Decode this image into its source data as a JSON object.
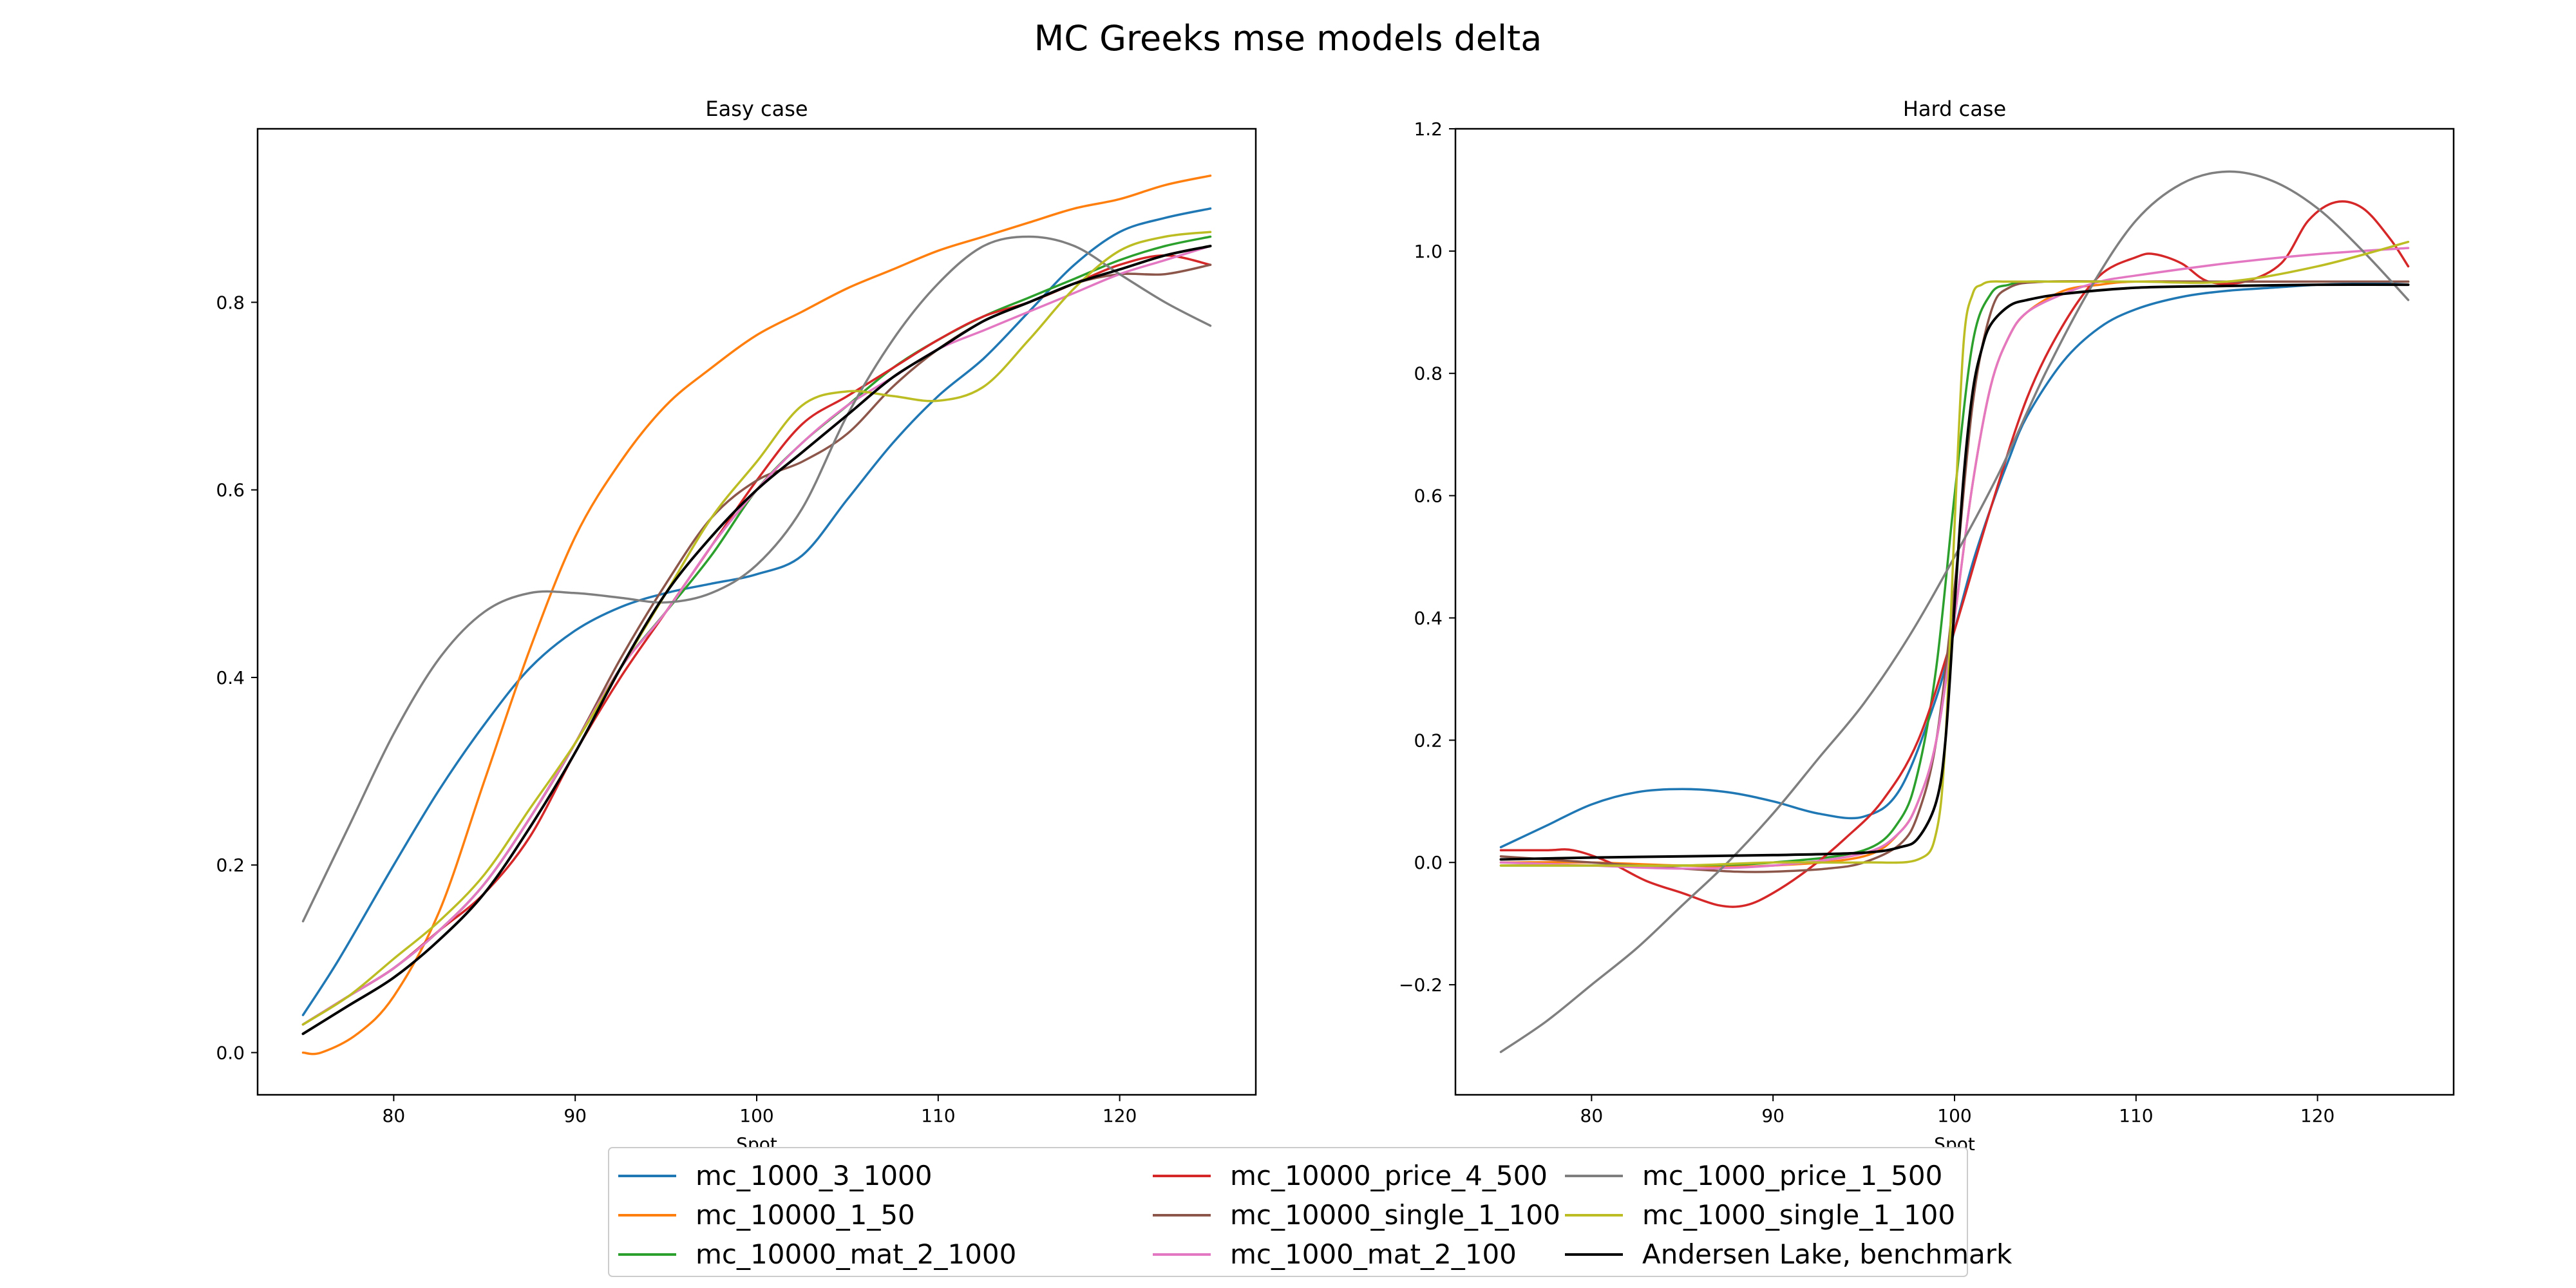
{
  "figure": {
    "suptitle": "MC Greeks mse models delta"
  },
  "legend": {
    "placement": "lower-center",
    "entries": [
      {
        "label": "mc_1000_3_1000",
        "color": "#1f77b4"
      },
      {
        "label": "mc_10000_1_50",
        "color": "#ff7f0e"
      },
      {
        "label": "mc_10000_mat_2_1000",
        "color": "#2ca02c"
      },
      {
        "label": "mc_10000_price_4_500",
        "color": "#d62728"
      },
      {
        "label": "mc_10000_single_1_100",
        "color": "#8c564b"
      },
      {
        "label": "mc_1000_mat_2_100",
        "color": "#e377c2"
      },
      {
        "label": "mc_1000_price_1_500",
        "color": "#7f7f7f"
      },
      {
        "label": "mc_1000_single_1_100",
        "color": "#bcbd22"
      },
      {
        "label": "Andersen Lake, benchmark",
        "color": "#000000"
      }
    ]
  },
  "chart_data": [
    {
      "type": "line",
      "title": "Easy case",
      "xlabel": "Spot",
      "ylabel": "",
      "xlim": [
        72.5,
        127.5
      ],
      "ylim": [
        -0.045,
        0.985
      ],
      "xticks": [
        80,
        90,
        100,
        110,
        120
      ],
      "yticks": [
        0.0,
        0.2,
        0.4,
        0.6,
        0.8
      ],
      "ytick_labels": [
        "0.0",
        "0.2",
        "0.4",
        "0.6",
        "0.8"
      ],
      "grid": false,
      "series": [
        {
          "name": "mc_1000_3_1000",
          "color": "#1f77b4",
          "x": [
            75,
            77,
            80,
            82.5,
            85,
            87.5,
            90,
            92.5,
            95,
            97.5,
            100,
            102.5,
            105,
            107.5,
            110,
            112.5,
            115,
            117.5,
            120,
            122.5,
            125
          ],
          "y": [
            0.04,
            0.1,
            0.2,
            0.28,
            0.35,
            0.41,
            0.45,
            0.475,
            0.49,
            0.5,
            0.51,
            0.53,
            0.59,
            0.65,
            0.7,
            0.74,
            0.79,
            0.84,
            0.875,
            0.89,
            0.9
          ]
        },
        {
          "name": "mc_10000_1_50",
          "color": "#ff7f0e",
          "x": [
            75,
            76,
            78,
            80,
            82.5,
            85,
            87.5,
            90,
            92.5,
            95,
            97.5,
            100,
            102.5,
            105,
            107.5,
            110,
            112.5,
            115,
            117.5,
            120,
            122.5,
            125
          ],
          "y": [
            0.0,
            0.0,
            0.02,
            0.06,
            0.15,
            0.29,
            0.43,
            0.55,
            0.63,
            0.69,
            0.73,
            0.765,
            0.79,
            0.815,
            0.835,
            0.855,
            0.87,
            0.885,
            0.9,
            0.91,
            0.925,
            0.935
          ]
        },
        {
          "name": "mc_10000_mat_2_1000",
          "color": "#2ca02c",
          "x": [
            75,
            77.5,
            80,
            82.5,
            85,
            87.5,
            90,
            92.5,
            95,
            97.5,
            100,
            102.5,
            105,
            107.5,
            110,
            112.5,
            115,
            117.5,
            120,
            122.5,
            125
          ],
          "y": [
            0.03,
            0.06,
            0.09,
            0.13,
            0.18,
            0.25,
            0.33,
            0.41,
            0.47,
            0.53,
            0.6,
            0.65,
            0.69,
            0.73,
            0.76,
            0.785,
            0.805,
            0.825,
            0.845,
            0.86,
            0.87
          ]
        },
        {
          "name": "mc_10000_price_4_500",
          "color": "#d62728",
          "x": [
            75,
            77.5,
            80,
            82.5,
            85,
            87.5,
            90,
            92.5,
            95,
            97.5,
            100,
            102.5,
            105,
            107.5,
            110,
            112.5,
            115,
            117.5,
            120,
            122.5,
            125
          ],
          "y": [
            0.03,
            0.06,
            0.09,
            0.13,
            0.17,
            0.23,
            0.32,
            0.4,
            0.47,
            0.54,
            0.61,
            0.67,
            0.7,
            0.73,
            0.76,
            0.785,
            0.8,
            0.82,
            0.84,
            0.85,
            0.84
          ]
        },
        {
          "name": "mc_10000_single_1_100",
          "color": "#8c564b",
          "x": [
            75,
            77.5,
            80,
            82.5,
            85,
            87.5,
            90,
            92.5,
            95,
            97.5,
            100,
            102.5,
            105,
            107.5,
            110,
            112.5,
            115,
            117.5,
            120,
            122.5,
            125
          ],
          "y": [
            0.03,
            0.06,
            0.09,
            0.13,
            0.18,
            0.25,
            0.33,
            0.42,
            0.5,
            0.57,
            0.61,
            0.63,
            0.66,
            0.71,
            0.75,
            0.78,
            0.8,
            0.82,
            0.83,
            0.83,
            0.84
          ]
        },
        {
          "name": "mc_1000_mat_2_100",
          "color": "#e377c2",
          "x": [
            75,
            77.5,
            80,
            82.5,
            85,
            87.5,
            90,
            92.5,
            95,
            97.5,
            100,
            102.5,
            105,
            107.5,
            110,
            112.5,
            115,
            117.5,
            120,
            122.5,
            125
          ],
          "y": [
            0.03,
            0.06,
            0.09,
            0.13,
            0.18,
            0.25,
            0.33,
            0.41,
            0.47,
            0.54,
            0.6,
            0.65,
            0.69,
            0.72,
            0.75,
            0.77,
            0.79,
            0.81,
            0.83,
            0.845,
            0.86
          ]
        },
        {
          "name": "mc_1000_price_1_500",
          "color": "#7f7f7f",
          "x": [
            75,
            77.5,
            80,
            82.5,
            85,
            87.5,
            90,
            92.5,
            95,
            97.5,
            100,
            102.5,
            105,
            107.5,
            110,
            112.5,
            115,
            117.5,
            120,
            122.5,
            125
          ],
          "y": [
            0.14,
            0.24,
            0.34,
            0.42,
            0.47,
            0.49,
            0.49,
            0.485,
            0.48,
            0.49,
            0.52,
            0.58,
            0.68,
            0.76,
            0.82,
            0.86,
            0.87,
            0.86,
            0.83,
            0.8,
            0.775
          ]
        },
        {
          "name": "mc_1000_single_1_100",
          "color": "#bcbd22",
          "x": [
            75,
            77.5,
            80,
            82.5,
            85,
            87.5,
            90,
            92.5,
            95,
            97.5,
            100,
            102.5,
            105,
            107.5,
            110,
            112.5,
            115,
            117.5,
            120,
            122.5,
            125
          ],
          "y": [
            0.03,
            0.06,
            0.1,
            0.14,
            0.19,
            0.26,
            0.33,
            0.41,
            0.49,
            0.57,
            0.63,
            0.69,
            0.705,
            0.7,
            0.695,
            0.71,
            0.76,
            0.815,
            0.855,
            0.87,
            0.875
          ]
        },
        {
          "name": "Andersen Lake, benchmark",
          "color": "#000000",
          "x": [
            75,
            77.5,
            80,
            82.5,
            85,
            87.5,
            90,
            92.5,
            95,
            97.5,
            100,
            102.5,
            105,
            107.5,
            110,
            112.5,
            115,
            117.5,
            120,
            122.5,
            125
          ],
          "y": [
            0.02,
            0.05,
            0.08,
            0.12,
            0.17,
            0.24,
            0.32,
            0.41,
            0.49,
            0.55,
            0.6,
            0.64,
            0.68,
            0.72,
            0.75,
            0.78,
            0.8,
            0.82,
            0.835,
            0.85,
            0.86
          ]
        }
      ]
    },
    {
      "type": "line",
      "title": "Hard case",
      "xlabel": "Spot",
      "ylabel": "",
      "xlim": [
        72.5,
        127.5
      ],
      "ylim": [
        -0.38,
        1.2
      ],
      "xticks": [
        80,
        90,
        100,
        110,
        120
      ],
      "yticks": [
        -0.2,
        0.0,
        0.2,
        0.4,
        0.6,
        0.8,
        1.0,
        1.2
      ],
      "ytick_labels": [
        "−0.2",
        "0.0",
        "0.2",
        "0.4",
        "0.6",
        "0.8",
        "1.0",
        "1.2"
      ],
      "grid": false,
      "series": [
        {
          "name": "mc_1000_3_1000",
          "color": "#1f77b4",
          "x": [
            75,
            77.5,
            80,
            82.5,
            85,
            87.5,
            90,
            92.5,
            95,
            97,
            99,
            100,
            101,
            102,
            103,
            104,
            106,
            108,
            110,
            112.5,
            115,
            117.5,
            120,
            122.5,
            125
          ],
          "y": [
            0.025,
            0.06,
            0.095,
            0.115,
            0.12,
            0.115,
            0.1,
            0.08,
            0.075,
            0.12,
            0.27,
            0.38,
            0.49,
            0.58,
            0.66,
            0.73,
            0.82,
            0.875,
            0.905,
            0.925,
            0.935,
            0.94,
            0.945,
            0.947,
            0.95
          ]
        },
        {
          "name": "mc_10000_1_50",
          "color": "#ff7f0e",
          "x": [
            75,
            80,
            85,
            90,
            95,
            97,
            98,
            99,
            100,
            101,
            102,
            103,
            104,
            106,
            108,
            110,
            115,
            120,
            125
          ],
          "y": [
            0.0,
            0.0,
            -0.005,
            -0.005,
            0.01,
            0.05,
            0.1,
            0.2,
            0.4,
            0.62,
            0.78,
            0.86,
            0.9,
            0.935,
            0.945,
            0.95,
            0.95,
            0.95,
            0.95
          ]
        },
        {
          "name": "mc_10000_mat_2_1000",
          "color": "#2ca02c",
          "x": [
            75,
            80,
            85,
            90,
            95,
            97,
            98,
            99,
            100,
            101,
            102,
            103,
            104,
            106,
            110,
            115,
            120,
            125
          ],
          "y": [
            -0.005,
            -0.005,
            -0.005,
            0.0,
            0.02,
            0.07,
            0.15,
            0.32,
            0.6,
            0.85,
            0.93,
            0.945,
            0.95,
            0.95,
            0.95,
            0.95,
            0.95,
            0.95
          ]
        },
        {
          "name": "mc_10000_price_4_500",
          "color": "#d62728",
          "x": [
            75,
            77.5,
            79,
            81,
            83,
            85,
            87,
            88.5,
            90,
            92,
            94,
            96,
            98,
            100,
            102,
            104,
            106,
            108,
            110,
            111,
            112.5,
            114,
            116,
            118,
            119.5,
            121,
            122.5,
            124,
            125
          ],
          "y": [
            0.02,
            0.02,
            0.02,
            0.0,
            -0.03,
            -0.05,
            -0.07,
            -0.07,
            -0.05,
            -0.01,
            0.04,
            0.1,
            0.2,
            0.38,
            0.58,
            0.76,
            0.88,
            0.96,
            0.99,
            0.995,
            0.98,
            0.95,
            0.95,
            0.98,
            1.05,
            1.08,
            1.07,
            1.02,
            0.975
          ]
        },
        {
          "name": "mc_10000_single_1_100",
          "color": "#8c564b",
          "x": [
            75,
            80,
            85,
            88,
            90,
            93,
            95,
            97,
            98,
            99,
            100,
            101,
            102,
            103,
            105,
            110,
            115,
            120,
            125
          ],
          "y": [
            0.01,
            0.0,
            -0.01,
            -0.015,
            -0.015,
            -0.01,
            0.0,
            0.03,
            0.08,
            0.2,
            0.45,
            0.75,
            0.9,
            0.94,
            0.95,
            0.95,
            0.95,
            0.95,
            0.95
          ]
        },
        {
          "name": "mc_1000_mat_2_100",
          "color": "#e377c2",
          "x": [
            75,
            80,
            85,
            90,
            95,
            97,
            98,
            99,
            100,
            101,
            102,
            103,
            104,
            106,
            108,
            110,
            115,
            120,
            125
          ],
          "y": [
            0.0,
            -0.005,
            -0.01,
            -0.005,
            0.015,
            0.05,
            0.1,
            0.2,
            0.4,
            0.62,
            0.78,
            0.86,
            0.9,
            0.93,
            0.95,
            0.96,
            0.98,
            0.995,
            1.005
          ]
        },
        {
          "name": "mc_1000_price_1_500",
          "color": "#7f7f7f",
          "x": [
            75,
            77.5,
            80,
            82.5,
            85,
            87.5,
            90,
            92.5,
            95,
            97.5,
            100,
            102.5,
            105,
            107.5,
            110,
            112.5,
            115,
            117.5,
            120,
            122.5,
            125
          ],
          "y": [
            -0.31,
            -0.26,
            -0.2,
            -0.14,
            -0.07,
            0.0,
            0.08,
            0.17,
            0.26,
            0.37,
            0.5,
            0.64,
            0.8,
            0.94,
            1.05,
            1.11,
            1.13,
            1.115,
            1.07,
            1.0,
            0.92
          ]
        },
        {
          "name": "mc_1000_single_1_100",
          "color": "#bcbd22",
          "x": [
            75,
            80,
            85,
            90,
            95,
            98,
            99,
            99.5,
            100,
            100.5,
            101,
            101.5,
            102,
            103,
            105,
            110,
            115,
            120,
            125
          ],
          "y": [
            -0.005,
            -0.005,
            -0.005,
            0.0,
            0.0,
            0.005,
            0.05,
            0.2,
            0.55,
            0.85,
            0.93,
            0.945,
            0.95,
            0.95,
            0.95,
            0.95,
            0.95,
            0.975,
            1.015
          ]
        },
        {
          "name": "Andersen Lake, benchmark",
          "color": "#000000",
          "x": [
            75,
            80,
            85,
            90,
            95,
            97,
            98,
            99,
            99.5,
            100,
            100.5,
            101,
            101.5,
            102,
            103,
            104,
            106,
            110,
            115,
            120,
            125
          ],
          "y": [
            0.005,
            0.008,
            0.01,
            0.012,
            0.016,
            0.025,
            0.04,
            0.1,
            0.2,
            0.42,
            0.63,
            0.77,
            0.84,
            0.88,
            0.91,
            0.92,
            0.93,
            0.94,
            0.943,
            0.945,
            0.945
          ]
        }
      ]
    }
  ]
}
